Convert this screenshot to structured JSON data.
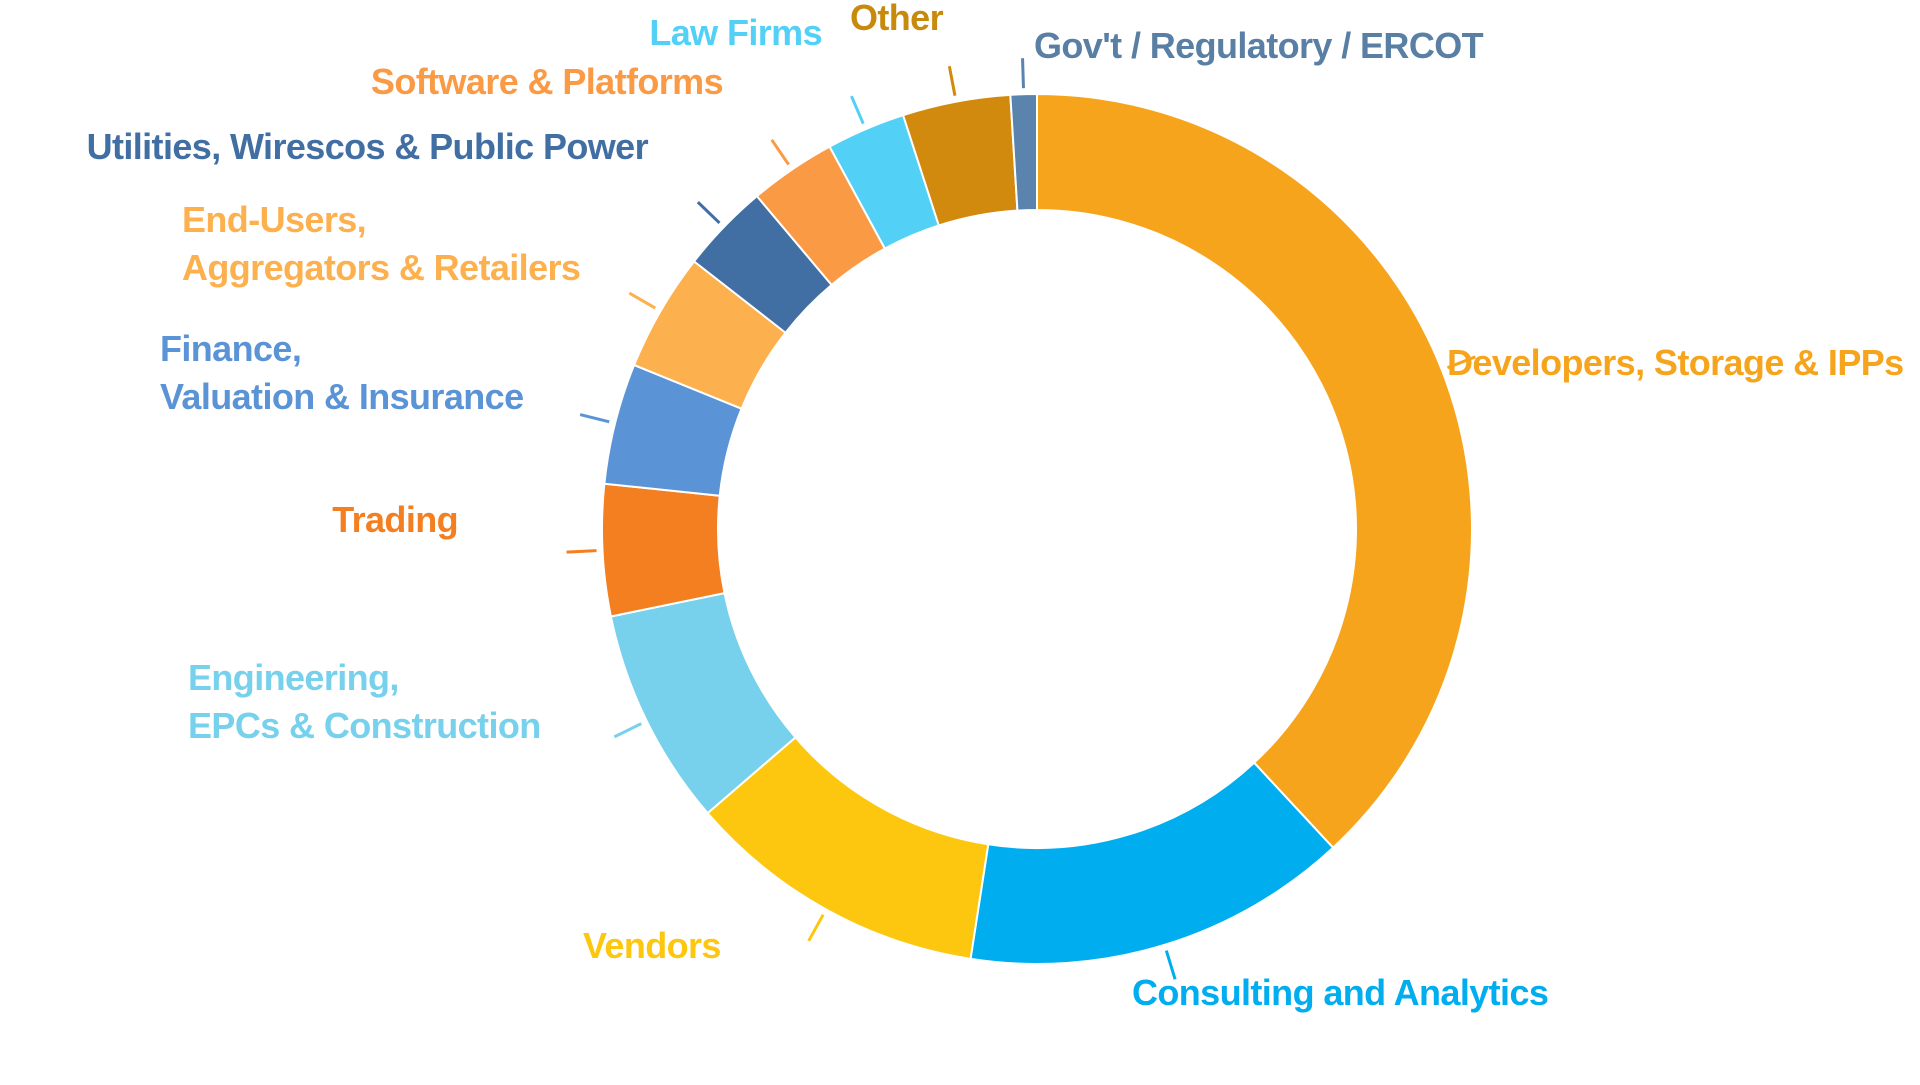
{
  "chart_data": {
    "type": "pie",
    "variant": "donut",
    "direction": "clockwise",
    "start": "top",
    "title": "",
    "categories": [
      "Developers, Storage & IPPs",
      "Consulting and Analytics",
      "Vendors",
      "Engineering,\nEPCs & Construction",
      "Trading",
      "Finance,\nValuation & Insurance",
      "End-Users,\nAggregators & Retailers",
      "Utilities, Wirescos & Public Power",
      "Software & Platforms",
      "Law Firms",
      "Other",
      "Gov't / Regulatory / ERCOT"
    ],
    "values": [
      39.0,
      14.7,
      11.5,
      8.3,
      5.0,
      4.6,
      4.5,
      3.4,
      3.3,
      3.0,
      4.1,
      1.0
    ],
    "colors": [
      "#F7A41D",
      "#00AEEF",
      "#FDC70F",
      "#77D1EC",
      "#F47F20",
      "#5B94D6",
      "#FDB04E",
      "#426FA3",
      "#FB9A45",
      "#52D0F6",
      "#D28A0E",
      "#5A83AE"
    ],
    "label_colors": [
      "#F7A41D",
      "#00AEEF",
      "#FDC70F",
      "#77D1EC",
      "#F47F20",
      "#5B94D6",
      "#FDB04E",
      "#426FA3",
      "#FB9A45",
      "#52D0F6",
      "#C88A0C",
      "#5A7FA5"
    ]
  }
}
